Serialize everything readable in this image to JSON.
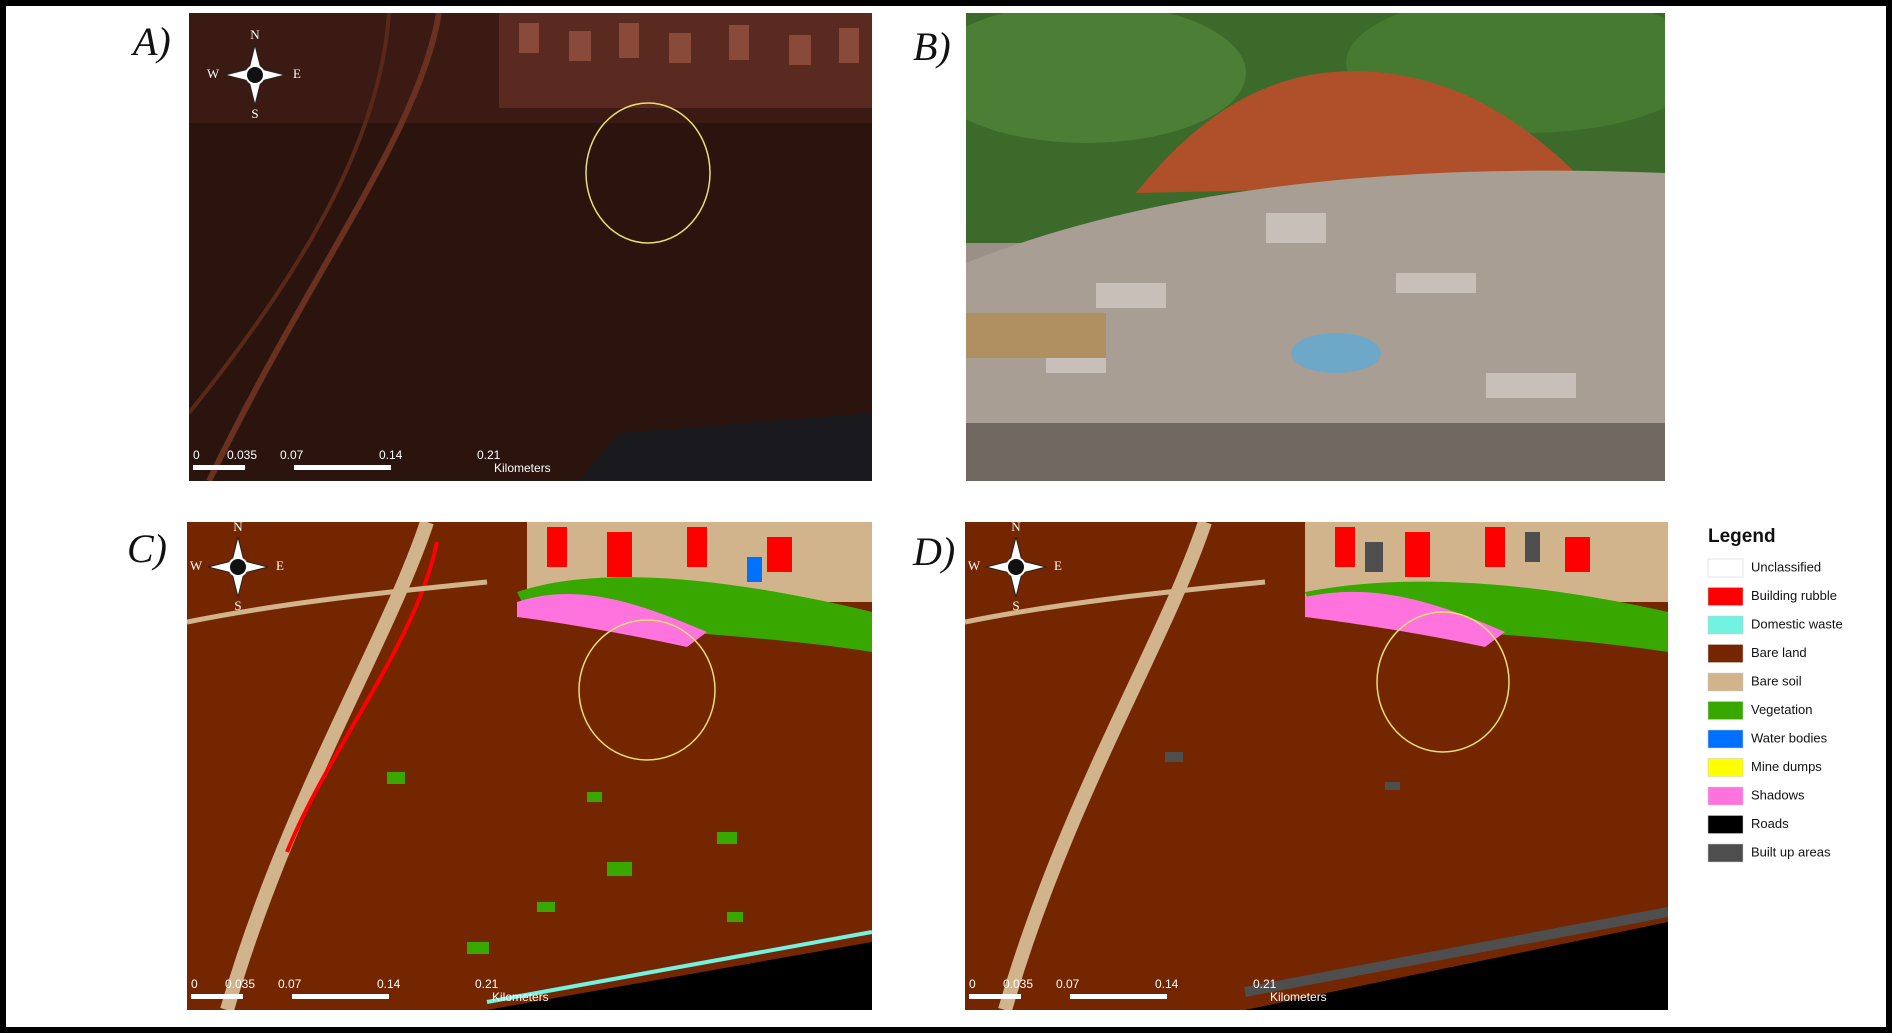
{
  "panels": [
    {
      "label": "A)"
    },
    {
      "label": "B)"
    },
    {
      "label": "C)"
    },
    {
      "label": "D)"
    }
  ],
  "compass": {
    "n": "N",
    "s": "S",
    "e": "E",
    "w": "W"
  },
  "scale_bar": {
    "labels": [
      "0",
      "0.035",
      "0.07",
      "0.14",
      "0.21"
    ],
    "unit": "Kilometers"
  },
  "legend": {
    "title": "Legend",
    "items": [
      {
        "label": "Unclassified",
        "color": "#ffffff"
      },
      {
        "label": "Building rubble",
        "color": "#ff0000"
      },
      {
        "label": "Domestic waste",
        "color": "#72f2e0"
      },
      {
        "label": "Bare land",
        "color": "#732600"
      },
      {
        "label": "Bare soil",
        "color": "#d2b48c"
      },
      {
        "label": "Vegetation",
        "color": "#38a800"
      },
      {
        "label": "Water bodies",
        "color": "#0070ff"
      },
      {
        "label": "Mine dumps",
        "color": "#ffff00"
      },
      {
        "label": "Shadows",
        "color": "#ff73df"
      },
      {
        "label": "Roads",
        "color": "#000000"
      },
      {
        "label": "Built up areas",
        "color": "#4e4e4e"
      }
    ]
  }
}
